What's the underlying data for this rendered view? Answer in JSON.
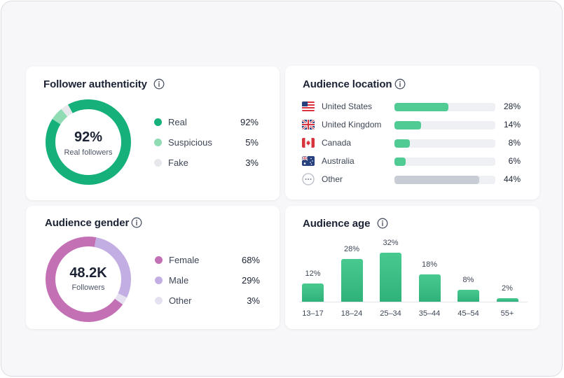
{
  "authenticity": {
    "title": "Follower authenticity",
    "center_value": "92%",
    "center_label": "Real followers",
    "items": [
      {
        "label": "Real",
        "value": "92%",
        "percent": 92,
        "color": "#16b07a"
      },
      {
        "label": "Suspicious",
        "value": "5%",
        "percent": 5,
        "color": "#8fdcb4"
      },
      {
        "label": "Fake",
        "value": "3%",
        "percent": 3,
        "color": "#e7e8ec"
      }
    ]
  },
  "gender": {
    "title": "Audience gender",
    "center_value": "48.2K",
    "center_label": "Followers",
    "items": [
      {
        "label": "Female",
        "value": "68%",
        "percent": 68,
        "color": "#c370b4"
      },
      {
        "label": "Male",
        "value": "29%",
        "percent": 29,
        "color": "#c3aee3"
      },
      {
        "label": "Other",
        "value": "3%",
        "percent": 3,
        "color": "#e6e1f0"
      }
    ]
  },
  "location": {
    "title": "Audience location",
    "items": [
      {
        "flag": "us-flag-icon",
        "label": "United States",
        "value": "28%",
        "percent": 28,
        "color": "#4fcb93"
      },
      {
        "flag": "uk-flag-icon",
        "label": "United Kingdom",
        "value": "14%",
        "percent": 14,
        "color": "#4fcb93"
      },
      {
        "flag": "canada-flag-icon",
        "label": "Canada",
        "value": "8%",
        "percent": 8,
        "color": "#4fcb93"
      },
      {
        "flag": "australia-flag-icon",
        "label": "Australia",
        "value": "6%",
        "percent": 6,
        "color": "#4fcb93"
      },
      {
        "flag": "other-dots-icon",
        "label": "Other",
        "value": "44%",
        "percent": 44,
        "color": "#c8ccd5"
      }
    ]
  },
  "age": {
    "title": "Audience age",
    "categories": [
      "13–17",
      "18–24",
      "25–34",
      "35–44",
      "45–54",
      "55+"
    ],
    "values": [
      12,
      28,
      32,
      18,
      8,
      2
    ],
    "labels": [
      "12%",
      "28%",
      "32%",
      "18%",
      "8%",
      "2%"
    ]
  }
}
